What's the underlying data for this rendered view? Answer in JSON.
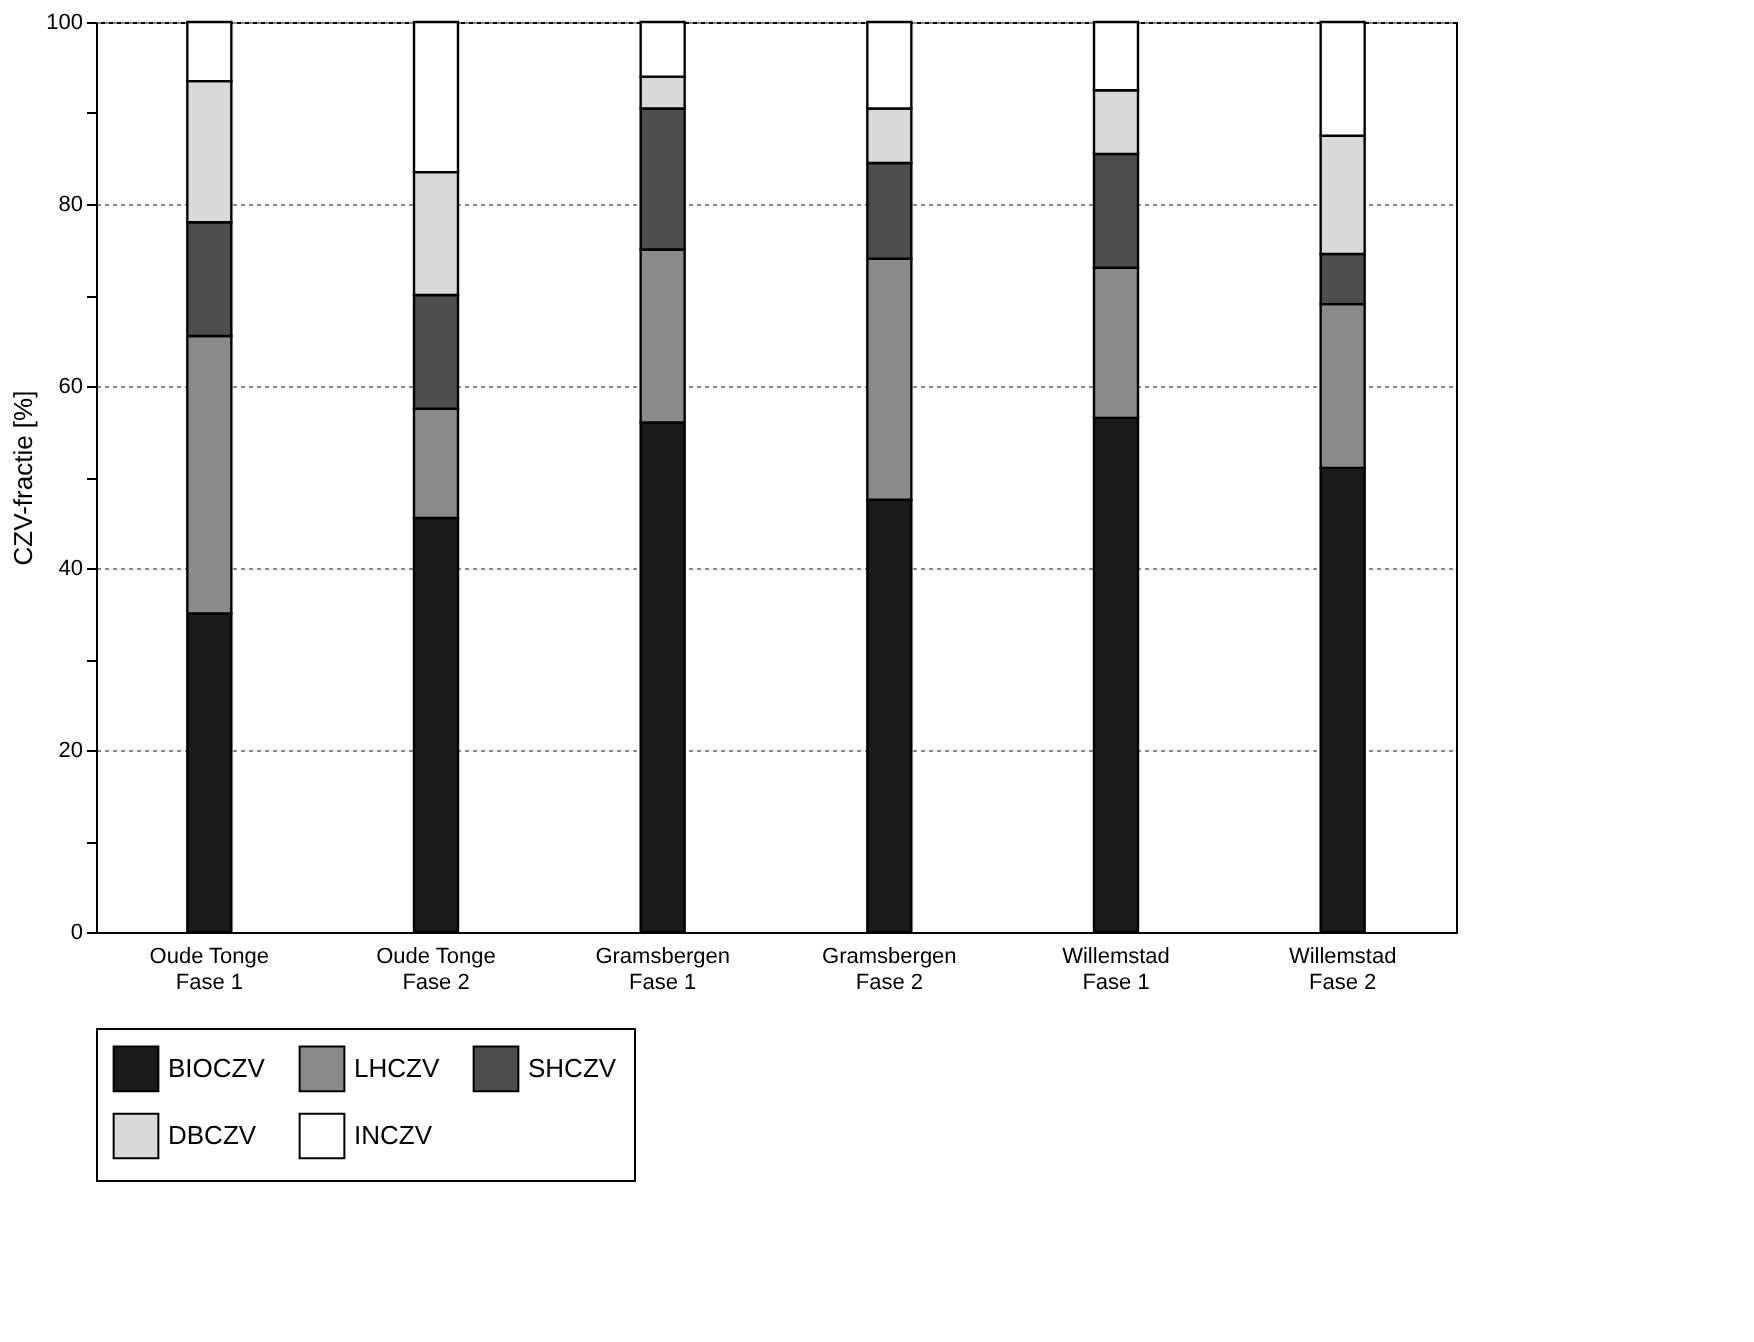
{
  "chart_data": {
    "type": "bar",
    "stacked": true,
    "ylabel": "CZV-fractie [%]",
    "categories": [
      "Oude Tonge\nFase 1",
      "Oude Tonge\nFase 2",
      "Gramsbergen\nFase 1",
      "Gramsbergen\nFase 2",
      "Willemstad\nFase 1",
      "Willemstad\nFase 2"
    ],
    "series": [
      {
        "name": "BIOCZV",
        "color": "#1a1a1a",
        "values": [
          35,
          45.5,
          56,
          47.5,
          56.5,
          51
        ]
      },
      {
        "name": "LHCZV",
        "color": "#8a8a8a",
        "values": [
          30.5,
          12,
          19,
          26.5,
          16.5,
          18
        ]
      },
      {
        "name": "SHCZV",
        "color": "#4d4d4d",
        "values": [
          12.5,
          12.5,
          15.5,
          10.5,
          12.5,
          5.5
        ]
      },
      {
        "name": "DBCZV",
        "color": "#d9d9d9",
        "values": [
          15.5,
          13.5,
          3.5,
          6,
          7,
          13
        ]
      },
      {
        "name": "INCZV",
        "color": "#ffffff",
        "values": [
          6.5,
          16.5,
          6,
          9.5,
          7.5,
          12.5
        ]
      }
    ],
    "ylim": [
      0,
      100
    ],
    "yticks": [
      0,
      {
        "value": 10,
        "label": null
      },
      20,
      {
        "value": 30,
        "label": null
      },
      40,
      {
        "value": 50,
        "label": null
      },
      60,
      {
        "value": 70,
        "label": null
      },
      80,
      {
        "value": 90,
        "label": null
      },
      100
    ],
    "grid": "y",
    "legend": "bottom"
  }
}
